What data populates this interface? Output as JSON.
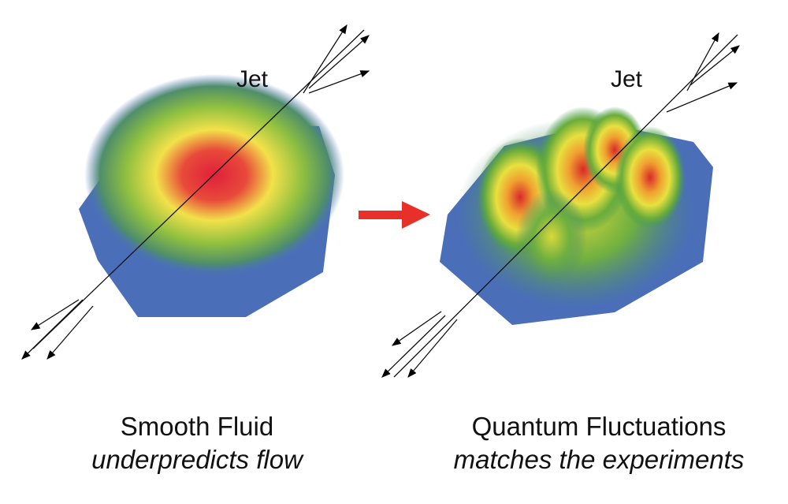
{
  "panels": [
    {
      "jet_label": "Jet",
      "title": "Smooth Fluid",
      "subtitle": "underpredicts flow"
    },
    {
      "jet_label": "Jet",
      "title": "Quantum Fluctuations",
      "subtitle": "matches the experiments"
    }
  ]
}
